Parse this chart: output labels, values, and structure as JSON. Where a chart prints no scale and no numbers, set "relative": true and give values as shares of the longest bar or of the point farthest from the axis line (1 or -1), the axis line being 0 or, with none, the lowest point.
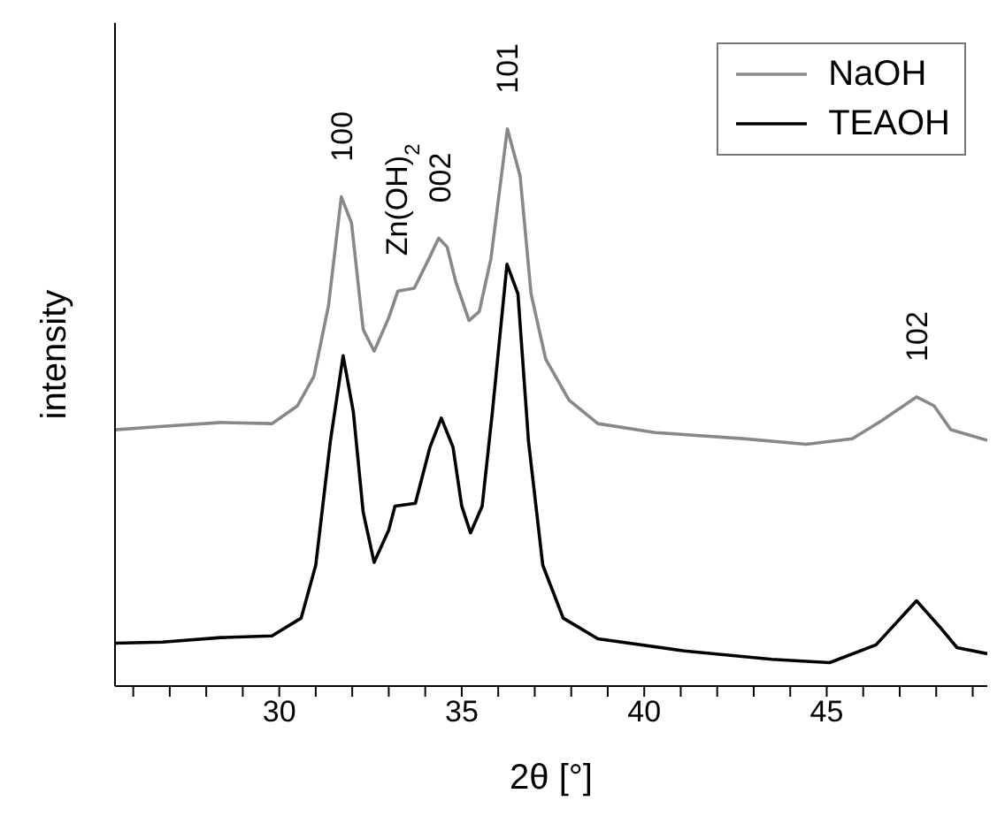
{
  "chart_data": {
    "type": "line",
    "relative": true,
    "xlabel": "2θ [°]",
    "ylabel": "intensity",
    "xlim": [
      25.5,
      49.4
    ],
    "xticks": [
      {
        "value": 26,
        "label": null
      },
      {
        "value": 27,
        "label": null
      },
      {
        "value": 28,
        "label": null
      },
      {
        "value": 29,
        "label": null
      },
      30,
      {
        "value": 31,
        "label": null
      },
      {
        "value": 32,
        "label": null
      },
      {
        "value": 33,
        "label": null
      },
      {
        "value": 34,
        "label": null
      },
      35,
      {
        "value": 36,
        "label": null
      },
      {
        "value": 37,
        "label": null
      },
      {
        "value": 38,
        "label": null
      },
      {
        "value": 39,
        "label": null
      },
      40,
      {
        "value": 41,
        "label": null
      },
      {
        "value": 42,
        "label": null
      },
      {
        "value": 43,
        "label": null
      },
      {
        "value": 44,
        "label": null
      },
      45,
      {
        "value": 46,
        "label": null
      },
      {
        "value": 47,
        "label": null
      },
      {
        "value": 48,
        "label": null
      },
      {
        "value": 49,
        "label": null
      }
    ],
    "legend": "top right",
    "grid": false,
    "marker": "none",
    "line_style": "solid",
    "series": [
      {
        "name": "NaOH",
        "color": "#888888",
        "x": [
          25.5,
          26.8,
          28.4,
          29.8,
          30.5,
          30.95,
          31.35,
          31.7,
          31.98,
          32.3,
          32.6,
          33.0,
          33.25,
          33.7,
          34.1,
          34.37,
          34.6,
          34.84,
          35.2,
          35.48,
          35.8,
          36.25,
          36.6,
          36.9,
          37.3,
          37.94,
          38.73,
          40.3,
          42.7,
          44.44,
          45.7,
          46.5,
          47.46,
          47.94,
          48.4,
          49.4
        ],
        "values": [
          0.46,
          0.466,
          0.473,
          0.471,
          0.503,
          0.556,
          0.683,
          0.878,
          0.831,
          0.64,
          0.601,
          0.661,
          0.709,
          0.714,
          0.767,
          0.804,
          0.788,
          0.725,
          0.656,
          0.672,
          0.767,
          1.0,
          0.915,
          0.704,
          0.587,
          0.513,
          0.471,
          0.455,
          0.444,
          0.434,
          0.444,
          0.476,
          0.519,
          0.503,
          0.46,
          0.441
        ]
      },
      {
        "name": "TEAOH",
        "color": "#000000",
        "x": [
          25.5,
          26.8,
          28.4,
          29.8,
          30.6,
          31.0,
          31.4,
          31.75,
          32.03,
          32.3,
          32.6,
          33.0,
          33.17,
          33.73,
          34.13,
          34.44,
          34.76,
          35.0,
          35.24,
          35.56,
          35.84,
          36.24,
          36.54,
          36.83,
          37.22,
          37.78,
          38.73,
          41.1,
          43.5,
          45.08,
          46.35,
          47.46,
          48.1,
          48.57,
          49.4
        ],
        "values": [
          0.077,
          0.079,
          0.087,
          0.09,
          0.122,
          0.217,
          0.439,
          0.593,
          0.492,
          0.312,
          0.222,
          0.28,
          0.323,
          0.328,
          0.429,
          0.481,
          0.429,
          0.323,
          0.275,
          0.323,
          0.492,
          0.757,
          0.704,
          0.439,
          0.217,
          0.122,
          0.085,
          0.063,
          0.048,
          0.042,
          0.074,
          0.153,
          0.106,
          0.069,
          0.058
        ]
      }
    ],
    "annotations": [
      {
        "text": "100",
        "x": 31.7,
        "y": 0.878
      },
      {
        "text": "Zn(OH)$_{2}$",
        "x": 33.2,
        "y": 0.709
      },
      {
        "text": "002",
        "x": 34.4,
        "y": 0.804
      },
      {
        "text": "101",
        "x": 36.25,
        "y": 1.0
      },
      {
        "text": "102",
        "x": 47.46,
        "y": 0.519
      }
    ]
  }
}
